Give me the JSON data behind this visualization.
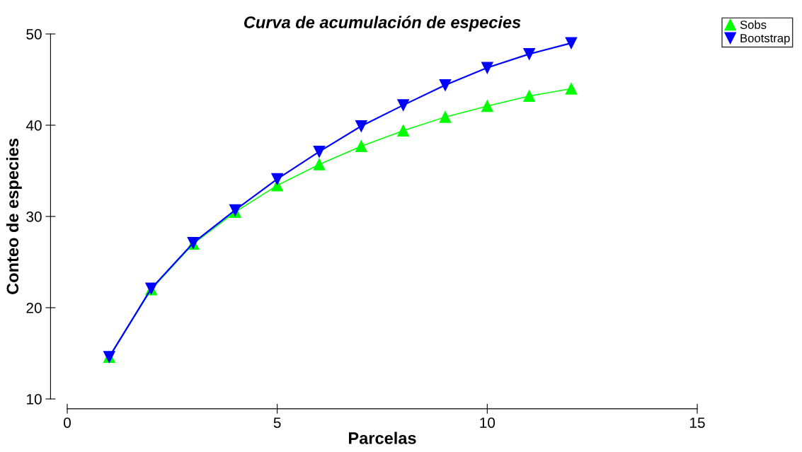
{
  "chart_data": {
    "type": "line",
    "title": "Curva de acumulación de especies",
    "xlabel": "Parcelas",
    "ylabel": "Conteo de especies",
    "x": [
      1,
      2,
      3,
      4,
      5,
      6,
      7,
      8,
      9,
      10,
      11,
      12
    ],
    "series": [
      {
        "name": "Sobs",
        "color": "#00ff00",
        "marker": "triangle",
        "values": [
          14.6,
          22.0,
          27.0,
          30.5,
          33.4,
          35.7,
          37.7,
          39.4,
          40.9,
          42.1,
          43.2,
          44.0
        ]
      },
      {
        "name": "Bootstrap",
        "color": "#0000ff",
        "marker": "triangle_down",
        "values": [
          14.6,
          22.1,
          27.1,
          30.7,
          34.1,
          37.1,
          39.9,
          42.2,
          44.4,
          46.3,
          47.8,
          49.0
        ]
      }
    ],
    "xlim": [
      0,
      15
    ],
    "xticks": [
      0,
      5,
      10,
      15
    ],
    "ylim": [
      10,
      50
    ],
    "yticks": [
      10,
      20,
      30,
      40,
      50
    ],
    "grid": false,
    "legend": "top right",
    "line_style": "solid"
  }
}
